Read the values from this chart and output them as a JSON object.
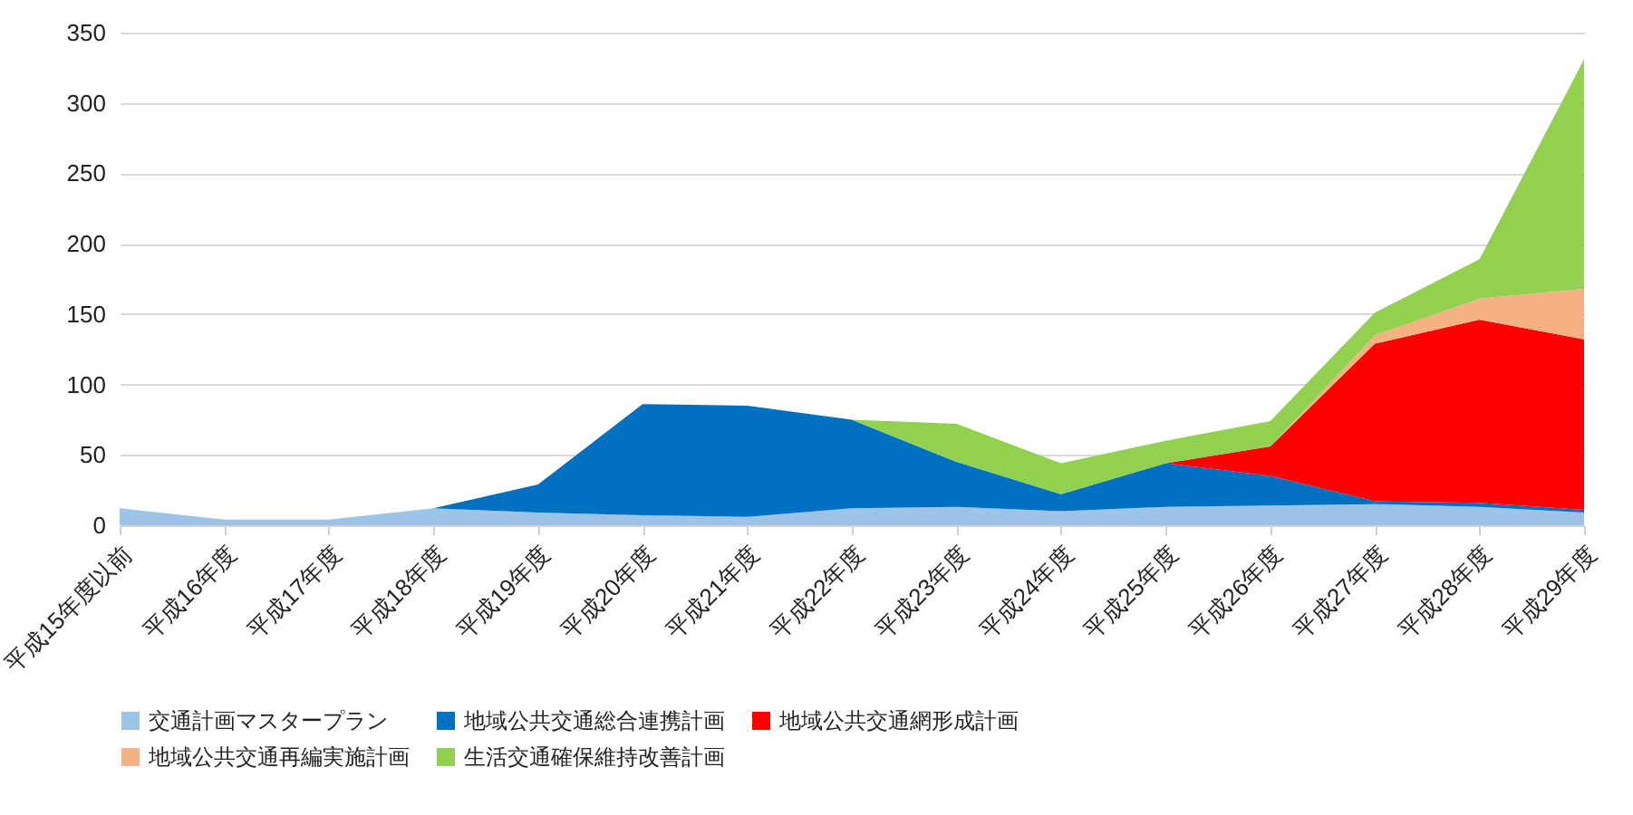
{
  "chart_data": {
    "type": "area",
    "stacked": true,
    "categories": [
      "平成15年度以前",
      "平成16年度",
      "平成17年度",
      "平成18年度",
      "平成19年度",
      "平成20年度",
      "平成21年度",
      "平成22年度",
      "平成23年度",
      "平成24年度",
      "平成25年度",
      "平成26年度",
      "平成27年度",
      "平成28年度",
      "平成29年度"
    ],
    "series": [
      {
        "name": "交通計画マスタープラン",
        "color": "#9dc3e6",
        "values": [
          12,
          4,
          4,
          12,
          9,
          7,
          6,
          12,
          13,
          10,
          13,
          14,
          15,
          13,
          9
        ]
      },
      {
        "name": "地域公共交通総合連携計画",
        "color": "#0070c0",
        "values": [
          0,
          0,
          0,
          0,
          20,
          79,
          79,
          63,
          32,
          12,
          31,
          21,
          2,
          3,
          2
        ]
      },
      {
        "name": "地域公共交通網形成計画",
        "color": "#ff0000",
        "values": [
          0,
          0,
          0,
          0,
          0,
          0,
          0,
          0,
          0,
          0,
          0,
          21,
          112,
          130,
          121
        ]
      },
      {
        "name": "地域公共交通再編実施計画",
        "color": "#f4b183",
        "values": [
          0,
          0,
          0,
          0,
          0,
          0,
          0,
          0,
          0,
          0,
          0,
          0,
          6,
          15,
          36
        ]
      },
      {
        "name": "生活交通確保維持改善計画",
        "color": "#92d050",
        "values": [
          0,
          0,
          0,
          0,
          0,
          0,
          0,
          0,
          27,
          22,
          16,
          18,
          16,
          28,
          163
        ]
      }
    ],
    "ylim": [
      0,
      350
    ],
    "yticks": [
      0,
      50,
      100,
      150,
      200,
      250,
      300,
      350
    ],
    "grid": "y",
    "legend": "bottom"
  }
}
